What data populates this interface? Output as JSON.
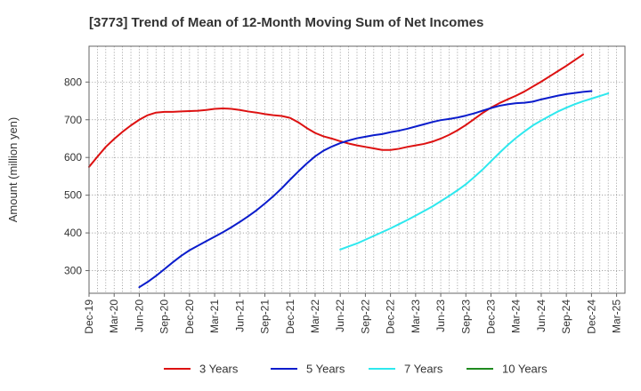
{
  "chart_data": {
    "type": "line",
    "title": "[3773]  Trend of Mean of 12-Month Moving Sum of Net Incomes",
    "ylabel": "Amount (million yen)",
    "xlabel": "",
    "ylim": [
      240,
      895
    ],
    "yticks": [
      300,
      400,
      500,
      600,
      700,
      800
    ],
    "x_tick_labels": [
      "Dec-19",
      "Mar-20",
      "Jun-20",
      "Sep-20",
      "Dec-20",
      "Mar-21",
      "Jun-21",
      "Sep-21",
      "Dec-21",
      "Mar-22",
      "Jun-22",
      "Sep-22",
      "Dec-22",
      "Mar-23",
      "Jun-23",
      "Sep-23",
      "Dec-23",
      "Mar-24",
      "Jun-24",
      "Sep-24",
      "Dec-24",
      "Mar-25"
    ],
    "grid": true,
    "legend_position": "bottom",
    "series": [
      {
        "name": "3 Years",
        "color": "#dd1111",
        "start_index": 0,
        "values": [
          575,
          602,
          628,
          649,
          668,
          685,
          700,
          712,
          719,
          721,
          721,
          722,
          723,
          724,
          726,
          729,
          730,
          729,
          726,
          722,
          719,
          715,
          712,
          710,
          705,
          693,
          678,
          665,
          656,
          650,
          643,
          637,
          632,
          628,
          624,
          620,
          620,
          623,
          628,
          632,
          636,
          642,
          650,
          660,
          672,
          686,
          702,
          718,
          732,
          744,
          754,
          764,
          775,
          788,
          801,
          815,
          829,
          843,
          858,
          873
        ]
      },
      {
        "name": "5 Years",
        "color": "#0a1ccc",
        "start_index": 6,
        "values": [
          256,
          270,
          286,
          304,
          322,
          339,
          354,
          366,
          378,
          390,
          402,
          415,
          429,
          444,
          460,
          478,
          497,
          518,
          541,
          563,
          584,
          603,
          618,
          629,
          638,
          645,
          651,
          655,
          659,
          662,
          667,
          671,
          676,
          682,
          688,
          694,
          699,
          702,
          706,
          711,
          717,
          724,
          731,
          737,
          741,
          744,
          745,
          748,
          754,
          759,
          764,
          768,
          771,
          774,
          776
        ]
      },
      {
        "name": "7 Years",
        "color": "#2ee8ee",
        "start_index": 30,
        "values": [
          356,
          364,
          372,
          382,
          392,
          402,
          412,
          423,
          434,
          446,
          458,
          470,
          484,
          498,
          513,
          529,
          548,
          568,
          590,
          612,
          633,
          652,
          669,
          685,
          698,
          710,
          722,
          732,
          741,
          749,
          756,
          763,
          770
        ]
      },
      {
        "name": "10 Years",
        "color": "#1f8a1f",
        "start_index": 0,
        "values": []
      }
    ]
  }
}
